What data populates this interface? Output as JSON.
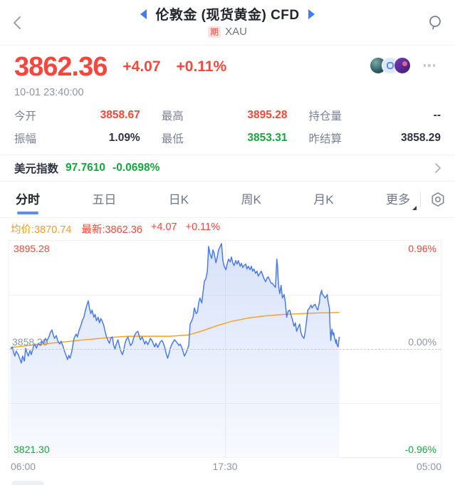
{
  "colors": {
    "up": "#f5473b",
    "down": "#17a83b",
    "accent": "#3d7ef7",
    "avg": "#f99d1c",
    "line": "#4b7be5",
    "text_dark": "#2b2e39",
    "border": "#eef0f3",
    "badge_bg": "#fbe3e1"
  },
  "header": {
    "title": "伦敦金 (现货黄金) CFD",
    "badge": "期",
    "symbol": "XAU"
  },
  "quote": {
    "price": "3862.36",
    "change": "+4.07",
    "change_pct": "+0.11%",
    "timestamp": "10-01 23:40:00"
  },
  "stats": [
    {
      "label": "今开",
      "value": "3858.67",
      "tone": "up"
    },
    {
      "label": "最高",
      "value": "3895.28",
      "tone": "up"
    },
    {
      "label": "持仓量",
      "value": "--",
      "tone": "flat"
    },
    {
      "label": "振幅",
      "value": "1.09%",
      "tone": "flat"
    },
    {
      "label": "最低",
      "value": "3853.31",
      "tone": "down"
    },
    {
      "label": "昨结算",
      "value": "3858.29",
      "tone": "flat"
    }
  ],
  "usd_index": {
    "label": "美元指数",
    "value": "97.7610",
    "change": "-0.0698%"
  },
  "tabs": [
    {
      "label": "分时"
    },
    {
      "label": "五日"
    },
    {
      "label": "日K"
    },
    {
      "label": "周K"
    },
    {
      "label": "月K"
    },
    {
      "label": "更多"
    }
  ],
  "legend": {
    "avg": "均价:3870.74",
    "last": "最新:3862.36",
    "change": "+4.07",
    "change_pct": "+0.11%"
  },
  "chart_data": {
    "type": "line",
    "ylim": [
      -0.96,
      0.96
    ],
    "baseline_price": 3858.29,
    "high": 3895.28,
    "low": 3821.3,
    "y_left_labels": [
      "3895.28",
      "3858.29",
      "3821.30"
    ],
    "y_right_labels": [
      "0.96%",
      "0.00%",
      "-0.96%"
    ],
    "x_ticks": [
      "06:00",
      "17:30",
      "05:00"
    ],
    "grid": "on",
    "session_end_fraction": 0.765,
    "series": [
      {
        "name": "price",
        "points": [
          [
            0.003,
            -0.006
          ],
          [
            0.007,
            0.019
          ],
          [
            0.01,
            -0.031
          ],
          [
            0.013,
            -0.063
          ],
          [
            0.016,
            -0.019
          ],
          [
            0.021,
            -0.05
          ],
          [
            0.025,
            -0.094
          ],
          [
            0.028,
            -0.125
          ],
          [
            0.031,
            -0.063
          ],
          [
            0.035,
            -0.107
          ],
          [
            0.038,
            0.006
          ],
          [
            0.041,
            -0.031
          ],
          [
            0.044,
            -0.063
          ],
          [
            0.048,
            -0.013
          ],
          [
            0.051,
            -0.05
          ],
          [
            0.056,
            0.019
          ],
          [
            0.059,
            0.044
          ],
          [
            0.063,
            0.006
          ],
          [
            0.067,
            0.05
          ],
          [
            0.072,
            0.031
          ],
          [
            0.076,
            0.069
          ],
          [
            0.079,
            0.05
          ],
          [
            0.084,
            0.094
          ],
          [
            0.087,
            0.069
          ],
          [
            0.092,
            0.107
          ],
          [
            0.095,
            0.144
          ],
          [
            0.099,
            0.169
          ],
          [
            0.102,
            0.125
          ],
          [
            0.105,
            0.094
          ],
          [
            0.109,
            0.119
          ],
          [
            0.112,
            0.075
          ],
          [
            0.117,
            0.044
          ],
          [
            0.12,
            0.069
          ],
          [
            0.125,
            0.019
          ],
          [
            0.128,
            -0.019
          ],
          [
            0.132,
            -0.063
          ],
          [
            0.135,
            -0.094
          ],
          [
            0.138,
            -0.056
          ],
          [
            0.141,
            -0.082
          ],
          [
            0.145,
            -0.019
          ],
          [
            0.15,
            0.094
          ],
          [
            0.155,
            0.132
          ],
          [
            0.158,
            0.107
          ],
          [
            0.161,
            0.157
          ],
          [
            0.166,
            0.207
          ],
          [
            0.169,
            0.251
          ],
          [
            0.173,
            0.282
          ],
          [
            0.176,
            0.333
          ],
          [
            0.179,
            0.376
          ],
          [
            0.183,
            0.427
          ],
          [
            0.186,
            0.358
          ],
          [
            0.189,
            0.314
          ],
          [
            0.192,
            0.345
          ],
          [
            0.196,
            0.282
          ],
          [
            0.199,
            0.307
          ],
          [
            0.202,
            0.251
          ],
          [
            0.206,
            0.282
          ],
          [
            0.209,
            0.232
          ],
          [
            0.212,
            0.27
          ],
          [
            0.215,
            0.251
          ],
          [
            0.219,
            0.207
          ],
          [
            0.222,
            0.157
          ],
          [
            0.225,
            0.113
          ],
          [
            0.229,
            0.075
          ],
          [
            0.232,
            0.05
          ],
          [
            0.235,
            0.094
          ],
          [
            0.239,
            0.107
          ],
          [
            0.242,
            0.031
          ],
          [
            0.245,
            0.0
          ],
          [
            0.248,
            0.044
          ],
          [
            0.252,
            0.082
          ],
          [
            0.255,
            0.031
          ],
          [
            0.258,
            -0.013
          ],
          [
            0.262,
            -0.05
          ],
          [
            0.265,
            -0.019
          ],
          [
            0.268,
            0.044
          ],
          [
            0.271,
            0.082
          ],
          [
            0.275,
            0.107
          ],
          [
            0.278,
            0.069
          ],
          [
            0.281,
            0.031
          ],
          [
            0.285,
            0.05
          ],
          [
            0.288,
            0.094
          ],
          [
            0.291,
            0.125
          ],
          [
            0.294,
            0.144
          ],
          [
            0.298,
            0.157
          ],
          [
            0.301,
            0.119
          ],
          [
            0.304,
            0.082
          ],
          [
            0.308,
            0.107
          ],
          [
            0.311,
            0.075
          ],
          [
            0.314,
            0.044
          ],
          [
            0.317,
            0.069
          ],
          [
            0.321,
            0.038
          ],
          [
            0.324,
            0.063
          ],
          [
            0.327,
            0.094
          ],
          [
            0.331,
            0.075
          ],
          [
            0.334,
            0.044
          ],
          [
            0.337,
            0.019
          ],
          [
            0.34,
            0.05
          ],
          [
            0.344,
            0.013
          ],
          [
            0.347,
            0.038
          ],
          [
            0.35,
            0.063
          ],
          [
            0.354,
            0.075
          ],
          [
            0.357,
            0.05
          ],
          [
            0.36,
            0.019
          ],
          [
            0.363,
            -0.031
          ],
          [
            0.367,
            -0.082
          ],
          [
            0.37,
            -0.044
          ],
          [
            0.373,
            0.006
          ],
          [
            0.377,
            0.044
          ],
          [
            0.38,
            0.063
          ],
          [
            0.383,
            0.082
          ],
          [
            0.386,
            0.069
          ],
          [
            0.39,
            0.05
          ],
          [
            0.393,
            0.031
          ],
          [
            0.396,
            0.044
          ],
          [
            0.4,
            0.013
          ],
          [
            0.403,
            -0.025
          ],
          [
            0.406,
            -0.063
          ],
          [
            0.41,
            -0.031
          ],
          [
            0.413,
            0.0
          ],
          [
            0.416,
            0.031
          ],
          [
            0.419,
            0.22
          ],
          [
            0.423,
            0.251
          ],
          [
            0.426,
            0.282
          ],
          [
            0.429,
            0.364
          ],
          [
            0.433,
            0.314
          ],
          [
            0.436,
            0.326
          ],
          [
            0.439,
            0.408
          ],
          [
            0.442,
            0.452
          ],
          [
            0.446,
            0.408
          ],
          [
            0.449,
            0.502
          ],
          [
            0.452,
            0.596
          ],
          [
            0.456,
            0.627
          ],
          [
            0.459,
            0.69
          ],
          [
            0.462,
            0.91
          ],
          [
            0.465,
            0.847
          ],
          [
            0.469,
            0.803
          ],
          [
            0.472,
            0.878
          ],
          [
            0.475,
            0.847
          ],
          [
            0.479,
            0.765
          ],
          [
            0.482,
            0.816
          ],
          [
            0.485,
            0.878
          ],
          [
            0.489,
            0.91
          ],
          [
            0.492,
            0.935
          ],
          [
            0.495,
            0.784
          ],
          [
            0.498,
            0.734
          ],
          [
            0.502,
            0.703
          ],
          [
            0.505,
            0.753
          ],
          [
            0.508,
            0.797
          ],
          [
            0.512,
            0.772
          ],
          [
            0.515,
            0.816
          ],
          [
            0.518,
            0.765
          ],
          [
            0.521,
            0.74
          ],
          [
            0.525,
            0.784
          ],
          [
            0.528,
            0.753
          ],
          [
            0.531,
            0.784
          ],
          [
            0.535,
            0.734
          ],
          [
            0.538,
            0.759
          ],
          [
            0.541,
            0.722
          ],
          [
            0.544,
            0.74
          ],
          [
            0.548,
            0.753
          ],
          [
            0.551,
            0.709
          ],
          [
            0.554,
            0.734
          ],
          [
            0.558,
            0.703
          ],
          [
            0.561,
            0.734
          ],
          [
            0.564,
            0.69
          ],
          [
            0.567,
            0.709
          ],
          [
            0.571,
            0.671
          ],
          [
            0.574,
            0.69
          ],
          [
            0.577,
            0.646
          ],
          [
            0.581,
            0.671
          ],
          [
            0.584,
            0.69
          ],
          [
            0.587,
            0.659
          ],
          [
            0.59,
            0.627
          ],
          [
            0.594,
            0.596
          ],
          [
            0.597,
            0.627
          ],
          [
            0.6,
            0.64
          ],
          [
            0.604,
            0.608
          ],
          [
            0.607,
            0.583
          ],
          [
            0.61,
            0.583
          ],
          [
            0.613,
            0.565
          ],
          [
            0.617,
            0.546
          ],
          [
            0.62,
            0.797
          ],
          [
            0.622,
            0.722
          ],
          [
            0.623,
            0.627
          ],
          [
            0.625,
            0.533
          ],
          [
            0.627,
            0.49
          ],
          [
            0.63,
            0.565
          ],
          [
            0.633,
            0.452
          ],
          [
            0.637,
            0.483
          ],
          [
            0.64,
            0.408
          ],
          [
            0.643,
            0.282
          ],
          [
            0.646,
            0.333
          ],
          [
            0.65,
            0.345
          ],
          [
            0.653,
            0.301
          ],
          [
            0.656,
            0.264
          ],
          [
            0.66,
            0.201
          ],
          [
            0.663,
            0.232
          ],
          [
            0.666,
            0.157
          ],
          [
            0.669,
            0.188
          ],
          [
            0.673,
            0.22
          ],
          [
            0.676,
            0.144
          ],
          [
            0.679,
            0.113
          ],
          [
            0.683,
            0.094
          ],
          [
            0.686,
            0.157
          ],
          [
            0.689,
            0.251
          ],
          [
            0.692,
            0.345
          ],
          [
            0.696,
            0.364
          ],
          [
            0.699,
            0.389
          ],
          [
            0.702,
            0.364
          ],
          [
            0.706,
            0.389
          ],
          [
            0.709,
            0.395
          ],
          [
            0.712,
            0.364
          ],
          [
            0.715,
            0.345
          ],
          [
            0.719,
            0.42
          ],
          [
            0.72,
            0.47
          ],
          [
            0.724,
            0.521
          ],
          [
            0.725,
            0.49
          ],
          [
            0.729,
            0.47
          ],
          [
            0.732,
            0.452
          ],
          [
            0.735,
            0.47
          ],
          [
            0.737,
            0.483
          ],
          [
            0.738,
            0.439
          ],
          [
            0.742,
            0.364
          ],
          [
            0.743,
            0.251
          ],
          [
            0.745,
            0.075
          ],
          [
            0.747,
            0.157
          ],
          [
            0.748,
            0.176
          ],
          [
            0.75,
            0.125
          ],
          [
            0.752,
            0.144
          ],
          [
            0.753,
            0.113
          ],
          [
            0.755,
            0.082
          ],
          [
            0.757,
            0.05
          ],
          [
            0.758,
            0.082
          ],
          [
            0.76,
            0.031
          ],
          [
            0.762,
            0.019
          ],
          [
            0.763,
            0.05
          ],
          [
            0.765,
            0.107
          ]
        ]
      },
      {
        "name": "avg",
        "points": [
          [
            0.003,
            0.013
          ],
          [
            0.063,
            0.038
          ],
          [
            0.128,
            0.063
          ],
          [
            0.178,
            0.082
          ],
          [
            0.227,
            0.1
          ],
          [
            0.276,
            0.113
          ],
          [
            0.326,
            0.113
          ],
          [
            0.375,
            0.113
          ],
          [
            0.416,
            0.125
          ],
          [
            0.449,
            0.163
          ],
          [
            0.482,
            0.207
          ],
          [
            0.515,
            0.245
          ],
          [
            0.556,
            0.276
          ],
          [
            0.597,
            0.295
          ],
          [
            0.638,
            0.307
          ],
          [
            0.679,
            0.314
          ],
          [
            0.72,
            0.32
          ],
          [
            0.765,
            0.323
          ]
        ]
      }
    ]
  }
}
